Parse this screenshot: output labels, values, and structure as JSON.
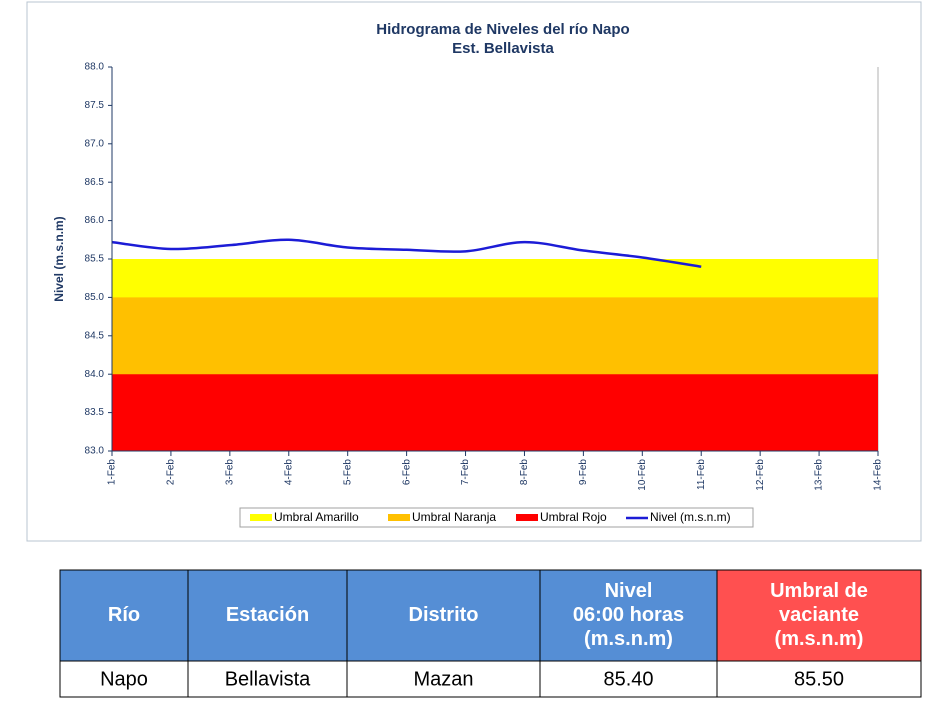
{
  "chart_data": {
    "type": "line",
    "title": "Hidrograma de Niveles del río Napo",
    "subtitle": "Est. Bellavista",
    "y_label": "Nivel (m.s.n.m)",
    "categories": [
      "1-Feb",
      "2-Feb",
      "3-Feb",
      "4-Feb",
      "5-Feb",
      "6-Feb",
      "7-Feb",
      "8-Feb",
      "9-Feb",
      "10-Feb",
      "11-Feb",
      "12-Feb",
      "13-Feb",
      "14-Feb"
    ],
    "series": [
      {
        "name": "Umbral Amarillo",
        "color": "#ffff00",
        "kind": "area",
        "values": [
          85.5,
          85.5,
          85.5,
          85.5,
          85.5,
          85.5,
          85.5,
          85.5,
          85.5,
          85.5,
          85.5,
          85.5,
          85.5,
          85.5
        ]
      },
      {
        "name": "Umbral Naranja",
        "color": "#ffc000",
        "kind": "area",
        "values": [
          85,
          85,
          85,
          85,
          85,
          85,
          85,
          85,
          85,
          85,
          85,
          85,
          85,
          85
        ]
      },
      {
        "name": "Umbral Rojo",
        "color": "#ff0000",
        "kind": "area",
        "values": [
          84,
          84,
          84,
          84,
          84,
          84,
          84,
          84,
          84,
          84,
          84,
          84,
          84,
          84
        ]
      },
      {
        "name": "Nivel (m.s.n.m)",
        "color": "#1c1cd6",
        "kind": "line",
        "values": [
          85.72,
          85.63,
          85.68,
          85.75,
          85.65,
          85.62,
          85.6,
          85.72,
          85.61,
          85.52,
          85.4,
          null,
          null,
          null
        ]
      }
    ],
    "ylim": [
      83,
      88
    ],
    "yticks": [
      {
        "value": 83,
        "label": "83.0"
      },
      83.5,
      {
        "value": 84,
        "label": "84.0"
      },
      84.5,
      {
        "value": 85,
        "label": "85.0"
      },
      85.5,
      {
        "value": 86,
        "label": "86.0"
      },
      86.5,
      {
        "value": 87,
        "label": "87.0"
      },
      87.5,
      {
        "value": 88,
        "label": "88.0"
      }
    ],
    "legend": "bottom"
  },
  "table": {
    "header": [
      [
        "Río"
      ],
      [
        "Estación"
      ],
      [
        "Distrito"
      ],
      [
        "Nivel",
        "06:00 horas",
        "(m.s.n.m)"
      ],
      [
        "Umbral de",
        "vaciante",
        "(m.s.n.m)"
      ]
    ],
    "rows": [
      [
        "Napo",
        "Bellavista",
        "Mazan",
        "85.40",
        "85.50"
      ]
    ]
  }
}
